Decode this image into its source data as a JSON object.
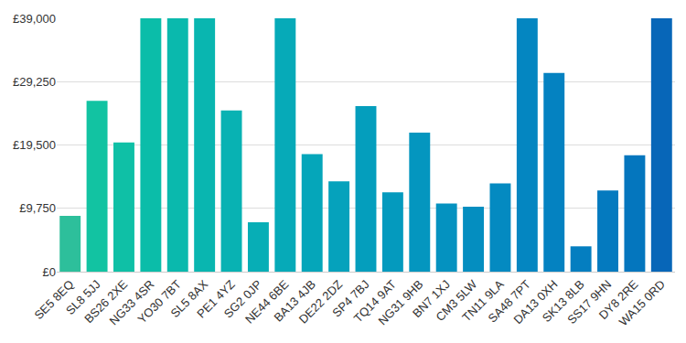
{
  "chart_data": {
    "type": "bar",
    "categories": [
      "SE5 8EQ",
      "SL8 5JJ",
      "BS26 2XE",
      "NG33 4SR",
      "YO30 7BT",
      "SL5 8AX",
      "PE1 4YZ",
      "SG2 0JP",
      "NE44 6BE",
      "BA13 4JB",
      "DE22 2DZ",
      "SP4 7BJ",
      "TQ14 9AT",
      "NG31 9HB",
      "BN7 1XJ",
      "CM3 5LW",
      "TN11 9LA",
      "SA48 7PT",
      "DA13 0XH",
      "SK13 8LB",
      "SS17 9HN",
      "DY8 2RE",
      "WA15 0RD"
    ],
    "values": [
      8600,
      26300,
      19900,
      39000,
      39000,
      39000,
      24800,
      7600,
      39000,
      18100,
      13900,
      25500,
      12200,
      21400,
      10500,
      10000,
      13600,
      39000,
      30600,
      3900,
      12500,
      17900,
      39000
    ],
    "colors": [
      "#2dbf9b",
      "#12c3a2",
      "#0fc0a6",
      "#0bbda9",
      "#0ab9ad",
      "#09b6b0",
      "#08b2b3",
      "#07aeb6",
      "#06aab8",
      "#05a6ba",
      "#05a2bc",
      "#049ebd",
      "#049abe",
      "#0496bf",
      "#0492c0",
      "#048ec0",
      "#048ac1",
      "#0486c1",
      "#0482c1",
      "#047ec0",
      "#047abf",
      "#0476be",
      "#0766b8"
    ],
    "ylim": [
      0,
      39000
    ],
    "yticks": [
      {
        "value": 0,
        "label": "£0"
      },
      {
        "value": 9750,
        "label": "£9,750"
      },
      {
        "value": 19500,
        "label": "£19,500"
      },
      {
        "value": 29250,
        "label": "£29,250"
      },
      {
        "value": 39000,
        "label": "£39,000"
      }
    ],
    "grid": true
  }
}
